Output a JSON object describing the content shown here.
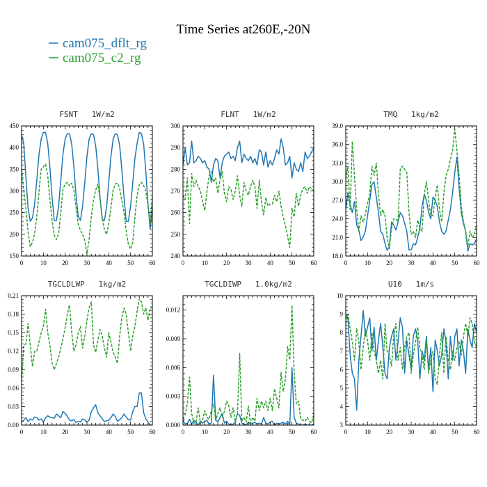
{
  "figure": {
    "title": "Time Series at260E,-20N",
    "legend": [
      {
        "name": "cam075_dflt_rg",
        "color": "#1f77b4",
        "dash": "solid"
      },
      {
        "name": "cam075_c2_rg",
        "color": "#2ca02c",
        "dash": "dashed"
      }
    ]
  },
  "chart_data": [
    {
      "type": "line",
      "title": "FSNT   1W/m2",
      "xlim": [
        0,
        60
      ],
      "ylim": [
        150,
        450
      ],
      "xticks": [
        0,
        10,
        20,
        30,
        40,
        50,
        60
      ],
      "yticks": [
        150,
        200,
        250,
        300,
        350,
        400,
        450
      ],
      "ytick_decimals": 0,
      "series": [
        {
          "name": "cam075_dflt_rg",
          "color": "#1f77b4",
          "dash": "solid",
          "values": [
            430,
            410,
            330,
            260,
            230,
            238,
            270,
            325,
            385,
            420,
            435,
            435,
            410,
            355,
            285,
            232,
            232,
            265,
            325,
            385,
            420,
            432,
            432,
            408,
            355,
            290,
            240,
            232,
            265,
            320,
            380,
            420,
            432,
            430,
            405,
            350,
            285,
            235,
            232,
            262,
            320,
            380,
            420,
            432,
            430,
            405,
            350,
            285,
            230,
            230,
            265,
            318,
            375,
            410,
            435,
            432,
            408,
            345,
            270,
            212,
            262
          ]
        },
        {
          "name": "cam075_c2_rg",
          "color": "#2ca02c",
          "dash": "dashed",
          "values": [
            350,
            302,
            258,
            205,
            172,
            182,
            202,
            240,
            300,
            350,
            356,
            362,
            335,
            280,
            232,
            198,
            188,
            202,
            250,
            305,
            315,
            320,
            312,
            318,
            302,
            262,
            222,
            210,
            200,
            185,
            156,
            188,
            242,
            280,
            302,
            316,
            282,
            240,
            210,
            200,
            225,
            262,
            302,
            316,
            318,
            306,
            278,
            250,
            207,
            177,
            166,
            182,
            240,
            290,
            315,
            320,
            312,
            300,
            268,
            225,
            290
          ]
        }
      ]
    },
    {
      "type": "line",
      "title": "FLNT   1W/m2",
      "xlim": [
        0,
        60
      ],
      "ylim": [
        240,
        300
      ],
      "xticks": [
        0,
        10,
        20,
        30,
        40,
        50,
        60
      ],
      "yticks": [
        240,
        250,
        260,
        270,
        280,
        290,
        300
      ],
      "ytick_decimals": 0,
      "series": [
        {
          "name": "cam075_dflt_rg",
          "color": "#1f77b4",
          "dash": "solid",
          "values": [
            282,
            290,
            282,
            283,
            293,
            283,
            284,
            286,
            285,
            283,
            284,
            281,
            280,
            274,
            282,
            285,
            284,
            276,
            283,
            286,
            287,
            288,
            285,
            286,
            284,
            290,
            293,
            283,
            287,
            285,
            284,
            286,
            283,
            285,
            282,
            289,
            288,
            282,
            288,
            281,
            284,
            282,
            285,
            289,
            287,
            294,
            290,
            282,
            283,
            286,
            276,
            283,
            280,
            279,
            283,
            279,
            288,
            285,
            286,
            288,
            290
          ]
        },
        {
          "name": "cam075_c2_rg",
          "color": "#2ca02c",
          "dash": "dashed",
          "values": [
            268,
            266,
            276,
            255,
            278,
            272,
            275,
            272,
            270,
            265,
            261,
            270,
            277,
            279,
            274,
            276,
            269,
            275,
            279,
            269,
            265,
            272,
            271,
            266,
            270,
            277,
            268,
            263,
            274,
            270,
            268,
            272,
            275,
            272,
            262,
            275,
            265,
            259,
            267,
            263,
            264,
            264,
            268,
            265,
            270,
            263,
            258,
            254,
            249,
            244,
            262,
            258,
            269,
            263,
            268,
            271,
            272,
            269,
            272,
            271,
            270
          ]
        }
      ]
    },
    {
      "type": "line",
      "title": "TMQ   1kg/m2",
      "xlim": [
        0,
        60
      ],
      "ylim": [
        18,
        39
      ],
      "xticks": [
        0,
        10,
        20,
        30,
        40,
        50,
        60
      ],
      "yticks": [
        18,
        21,
        24,
        27,
        30,
        33,
        36,
        39
      ],
      "ytick_decimals": 1,
      "series": [
        {
          "name": "cam075_dflt_rg",
          "color": "#1f77b4",
          "dash": "solid",
          "values": [
            25.5,
            28.2,
            26.3,
            25.0,
            26.8,
            23.0,
            22.2,
            20.5,
            21.1,
            22.0,
            24.5,
            27.0,
            29.5,
            30.0,
            27.5,
            25.0,
            22.0,
            21.5,
            20.0,
            18.9,
            19.5,
            23.5,
            23.0,
            22.2,
            23.5,
            25.0,
            24.5,
            23.3,
            22.0,
            19.0,
            19.0,
            20.0,
            19.8,
            21.0,
            22.5,
            26.0,
            28.0,
            27.0,
            25.0,
            24.0,
            27.5,
            27.0,
            26.0,
            23.5,
            22.0,
            21.5,
            22.0,
            23.8,
            25.5,
            28.2,
            31.5,
            34.0,
            29.0,
            25.0,
            23.2,
            22.0,
            18.8,
            20.0,
            19.8,
            20.0,
            20.8
          ]
        },
        {
          "name": "cam075_c2_rg",
          "color": "#2ca02c",
          "dash": "dashed",
          "values": [
            30.5,
            32.5,
            25.5,
            36.5,
            31.0,
            25.5,
            22.0,
            24.5,
            23.5,
            24.8,
            26.5,
            28.0,
            32.5,
            31.0,
            33.0,
            28.0,
            24.5,
            25.5,
            24.5,
            21.0,
            19.2,
            22.5,
            24.0,
            24.0,
            23.5,
            32.0,
            32.5,
            32.0,
            31.5,
            25.0,
            21.5,
            22.0,
            21.0,
            23.8,
            22.5,
            22.0,
            28.0,
            30.0,
            27.0,
            24.5,
            24.5,
            27.5,
            29.5,
            25.5,
            23.5,
            28.2,
            31.0,
            32.0,
            33.5,
            35.0,
            38.5,
            35.0,
            31.0,
            26.0,
            23.5,
            22.0,
            19.5,
            22.0,
            21.0,
            21.5,
            23.0
          ]
        }
      ]
    },
    {
      "type": "line",
      "title": "TGCLDLWP   1kg/m2",
      "xlim": [
        0,
        60
      ],
      "ylim": [
        0,
        0.21
      ],
      "xticks": [
        0,
        10,
        20,
        30,
        40,
        50,
        60
      ],
      "yticks": [
        0,
        0.03,
        0.06,
        0.09,
        0.12,
        0.15,
        0.18,
        0.21
      ],
      "ytick_decimals": 2,
      "series": [
        {
          "name": "cam075_dflt_rg",
          "color": "#1f77b4",
          "dash": "solid",
          "values": [
            0.005,
            0.008,
            0.012,
            0.006,
            0.01,
            0.008,
            0.013,
            0.012,
            0.008,
            0.01,
            0.005,
            0.012,
            0.015,
            0.013,
            0.012,
            0.011,
            0.018,
            0.015,
            0.012,
            0.022,
            0.019,
            0.014,
            0.008,
            0.007,
            0.009,
            0.004,
            0.006,
            0.005,
            0.01,
            0.008,
            0.005,
            0.008,
            0.022,
            0.028,
            0.033,
            0.02,
            0.015,
            0.01,
            0.006,
            0.007,
            0.008,
            0.012,
            0.018,
            0.014,
            0.006,
            0.009,
            0.012,
            0.018,
            0.013,
            0.009,
            0.008,
            0.022,
            0.03,
            0.03,
            0.052,
            0.052,
            0.02,
            0.01,
            0.005,
            0.0,
            0.0
          ]
        },
        {
          "name": "cam075_c2_rg",
          "color": "#2ca02c",
          "dash": "dashed",
          "values": [
            0.07,
            0.13,
            0.132,
            0.165,
            0.13,
            0.095,
            0.12,
            0.12,
            0.135,
            0.15,
            0.16,
            0.188,
            0.15,
            0.13,
            0.1,
            0.09,
            0.1,
            0.11,
            0.125,
            0.14,
            0.158,
            0.18,
            0.195,
            0.15,
            0.12,
            0.13,
            0.15,
            0.16,
            0.125,
            0.145,
            0.17,
            0.19,
            0.2,
            0.13,
            0.118,
            0.138,
            0.155,
            0.145,
            0.125,
            0.11,
            0.15,
            0.135,
            0.118,
            0.11,
            0.1,
            0.145,
            0.175,
            0.19,
            0.18,
            0.15,
            0.12,
            0.145,
            0.16,
            0.185,
            0.205,
            0.2,
            0.18,
            0.19,
            0.17,
            0.19,
            0.19
          ]
        }
      ]
    },
    {
      "type": "line",
      "title": "TGCLDIWP   1.0kg/m2",
      "xlim": [
        0,
        60
      ],
      "ylim": [
        0,
        0.0135
      ],
      "xticks": [
        0,
        10,
        20,
        30,
        40,
        50,
        60
      ],
      "yticks": [
        0,
        0.003,
        0.006,
        0.009,
        0.012
      ],
      "ytick_decimals": 3,
      "series": [
        {
          "name": "cam075_dflt_rg",
          "color": "#1f77b4",
          "dash": "solid",
          "values": [
            0.0005,
            0.0001,
            0.0002,
            0.0006,
            0.0001,
            0.0005,
            0.0003,
            0.0,
            0.0004,
            0.0002,
            0.0004,
            0.0005,
            0.0001,
            0.0002,
            0.0052,
            0.0006,
            0.0003,
            0.0008,
            0.0012,
            0.0002,
            0.0004,
            0.0001,
            0.0,
            0.0001,
            0.0003,
            0.0012,
            0.001,
            0.0002,
            0.0001,
            0.0,
            0.0003,
            0.0001,
            0.0002,
            0.0003,
            0.0001,
            0.0002,
            0.0001,
            0.0008,
            0.0002,
            0.0001,
            0.0003,
            0.0004,
            0.0,
            0.0002,
            0.0001,
            0.0002,
            0.0003,
            0.0001,
            0.0004,
            0.0,
            0.006,
            0.0008,
            0.0002,
            0.0001,
            0.0,
            0.0,
            0.0001,
            0.0,
            0.0,
            0.0,
            0.0001
          ]
        },
        {
          "name": "cam075_c2_rg",
          "color": "#2ca02c",
          "dash": "dashed",
          "values": [
            0.0006,
            0.0011,
            0.0022,
            0.005,
            0.0012,
            0.0002,
            0.0003,
            0.0018,
            0.0002,
            0.0005,
            0.0015,
            0.0008,
            0.0006,
            0.0015,
            0.0022,
            0.0005,
            0.0012,
            0.0018,
            0.0008,
            0.0014,
            0.0025,
            0.002,
            0.0008,
            0.0018,
            0.0003,
            0.0012,
            0.0075,
            0.0004,
            0.0008,
            0.0003,
            0.002,
            0.0002,
            0.0008,
            0.0004,
            0.0028,
            0.0015,
            0.0025,
            0.0018,
            0.0025,
            0.0015,
            0.0028,
            0.0015,
            0.0038,
            0.0028,
            0.0018,
            0.0055,
            0.0035,
            0.0048,
            0.0082,
            0.0068,
            0.0125,
            0.0055,
            0.0022,
            0.0025,
            0.0006,
            0.0005,
            0.0004,
            0.0008,
            0.0004,
            0.0002,
            0.0011
          ]
        }
      ]
    },
    {
      "type": "line",
      "title": "U10   1m/s",
      "xlim": [
        0,
        60
      ],
      "ylim": [
        3,
        10
      ],
      "xticks": [
        0,
        10,
        20,
        30,
        40,
        50,
        60
      ],
      "yticks": [
        3,
        4,
        5,
        6,
        7,
        8,
        9,
        10
      ],
      "ytick_decimals": 0,
      "series": [
        {
          "name": "cam075_dflt_rg",
          "color": "#1f77b4",
          "dash": "solid",
          "values": [
            9.0,
            8.8,
            6.8,
            5.8,
            5.5,
            3.8,
            6.5,
            7.8,
            9.2,
            7.8,
            8.3,
            8.8,
            7.0,
            8.3,
            6.5,
            7.6,
            8.5,
            7.2,
            5.8,
            5.5,
            7.2,
            7.8,
            8.2,
            6.5,
            7.5,
            8.8,
            8.3,
            5.8,
            7.6,
            6.8,
            6.0,
            7.8,
            8.2,
            7.6,
            5.5,
            7.0,
            6.5,
            7.8,
            6.0,
            7.2,
            4.8,
            7.6,
            7.0,
            6.2,
            6.8,
            8.2,
            7.5,
            5.5,
            7.8,
            6.5,
            7.8,
            8.2,
            6.2,
            7.6,
            7.0,
            5.8,
            8.2,
            7.6,
            7.2,
            8.5,
            8.0
          ]
        },
        {
          "name": "cam075_c2_rg",
          "color": "#2ca02c",
          "dash": "dashed",
          "values": [
            8.5,
            9.0,
            8.2,
            7.5,
            6.5,
            8.2,
            7.5,
            6.0,
            7.2,
            8.2,
            7.6,
            6.5,
            8.0,
            7.0,
            6.5,
            5.8,
            6.5,
            5.5,
            8.5,
            7.0,
            6.8,
            6.2,
            7.8,
            8.5,
            6.5,
            7.2,
            6.0,
            7.2,
            7.8,
            8.0,
            5.8,
            6.8,
            7.5,
            8.3,
            7.2,
            6.8,
            6.0,
            7.6,
            5.8,
            6.5,
            7.0,
            5.5,
            5.2,
            6.8,
            8.0,
            5.8,
            7.8,
            6.5,
            6.0,
            7.0,
            6.5,
            7.2,
            7.5,
            6.8,
            7.8,
            8.5,
            7.8,
            8.8,
            8.5,
            7.5,
            7.2
          ]
        }
      ]
    }
  ]
}
